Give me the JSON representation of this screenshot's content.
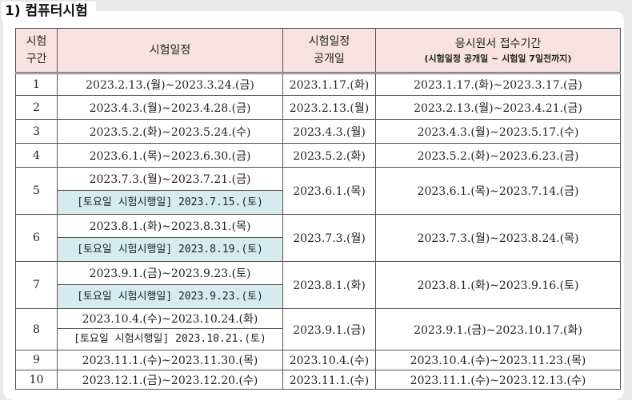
{
  "heading": "1) 컴퓨터시험",
  "headers": {
    "period": "시험\n구간",
    "period_l1": "시험",
    "period_l2": "구간",
    "dates": "시험일정",
    "announce_l1": "시험일정",
    "announce_l2": "공개일",
    "apply_l1": "응시원서 접수기간",
    "apply_l2": "(시험일정 공개일 ~ 시험일 7일전까지)"
  },
  "rows": [
    {
      "no": "1",
      "dates": "2023.2.13.(월)~2023.3.24.(금)",
      "saturday": "",
      "announce": "2023.1.17.(화)",
      "apply": "2023.1.17.(화)~2023.3.17.(금)"
    },
    {
      "no": "2",
      "dates": "2023.4.3.(월)~2023.4.28.(금)",
      "saturday": "",
      "announce": "2023.2.13.(월)",
      "apply": "2023.2.13.(월)~2023.4.21.(금)"
    },
    {
      "no": "3",
      "dates": "2023.5.2.(화)~2023.5.24.(수)",
      "saturday": "",
      "announce": "2023.4.3.(월)",
      "apply": "2023.4.3.(월)~2023.5.17.(수)"
    },
    {
      "no": "4",
      "dates": "2023.6.1.(목)~2023.6.30.(금)",
      "saturday": "",
      "announce": "2023.5.2.(화)",
      "apply": "2023.5.2.(화)~2023.6.23.(금)"
    },
    {
      "no": "5",
      "dates": "2023.7.3.(월)~2023.7.21.(금)",
      "saturday": "[토요일 시험시행일] 2023.7.15.(토)",
      "announce": "2023.6.1.(목)",
      "apply": "2023.6.1.(목)~2023.7.14.(금)"
    },
    {
      "no": "6",
      "dates": "2023.8.1.(화)~2023.8.31.(목)",
      "saturday": "[토요일 시험시행일] 2023.8.19.(토)",
      "announce": "2023.7.3.(월)",
      "apply": "2023.7.3.(월)~2023.8.24.(목)"
    },
    {
      "no": "7",
      "dates": "2023.9.1.(금)~2023.9.23.(토)",
      "saturday": "[토요일 시험시행일] 2023.9.23.(토)",
      "announce": "2023.8.1.(화)",
      "apply": "2023.8.1.(화)~2023.9.16.(토)"
    },
    {
      "no": "8",
      "dates": "2023.10.4.(수)~2023.10.24.(화)",
      "saturday": "[토요일 시험시행일] 2023.10.21.(토)",
      "announce": "2023.9.1.(금)",
      "apply": "2023.9.1.(금)~2023.10.17.(화)"
    },
    {
      "no": "9",
      "dates": "2023.11.1.(수)~2023.11.30.(목)",
      "saturday": "",
      "announce": "2023.10.4.(수)",
      "apply": "2023.10.4.(수)~2023.11.23.(목)"
    },
    {
      "no": "10",
      "dates": "2023.12.1.(금)~2023.12.20.(수)",
      "saturday": "",
      "announce": "2023.11.1.(수)",
      "apply": "2023.11.1.(수)~2023.12.13.(수)"
    }
  ],
  "colors": {
    "header_bg": "#f7e1e1",
    "saturday_bg": "#d5ebee"
  }
}
